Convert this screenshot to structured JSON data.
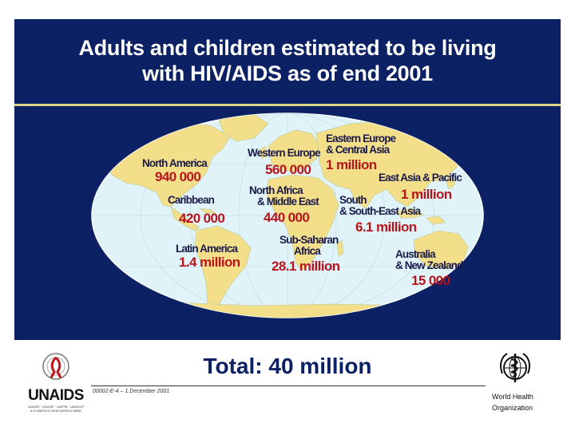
{
  "slide": {
    "title_line1": "Adults and children estimated to be living",
    "title_line2": "with HIV/AIDS as of end 2001",
    "total": "Total: 40 million",
    "code": "00002-E-4 – 1 December 2001"
  },
  "regions": {
    "north_america": {
      "name": "North America",
      "value": "940 000"
    },
    "caribbean": {
      "name": "Caribbean",
      "value": "420 000"
    },
    "latin_america": {
      "name": "Latin America",
      "value": "1.4 million"
    },
    "western_europe": {
      "name": "Western Europe",
      "value": "560 000"
    },
    "eastern_europe": {
      "name_line1": "Eastern Europe",
      "name_line2": "& Central Asia",
      "value": "1 million"
    },
    "north_africa": {
      "name_line1": "North Africa",
      "name_line2": "& Middle East",
      "value": "440 000"
    },
    "east_asia": {
      "name": "East Asia & Pacific",
      "value": "1 million"
    },
    "south_asia": {
      "name_line1": "South",
      "name_line2": "& South-East Asia",
      "value": "6.1 million"
    },
    "sub_saharan": {
      "name_line1": "Sub-Saharan",
      "name_line2": "Africa",
      "value": "28.1 million"
    },
    "australia": {
      "name_line1": "Australia",
      "name_line2": "& New Zealand",
      "value": "15 000"
    }
  },
  "logos": {
    "unaids": "UNAIDS",
    "unaids_tiny_line1": "UNHCR · UNICEF · UNFPA · UNODCP",
    "unaids_tiny_line2": "ILO·UNESCO·WHO·WORLD BANK",
    "who_line1": "World Health",
    "who_line2": "Organization"
  },
  "colors": {
    "banner": "#0b2163",
    "ocean": "#dff3f8",
    "land": "#f3df8a",
    "value_red": "#b8141c",
    "rule": "#d9d48a"
  }
}
